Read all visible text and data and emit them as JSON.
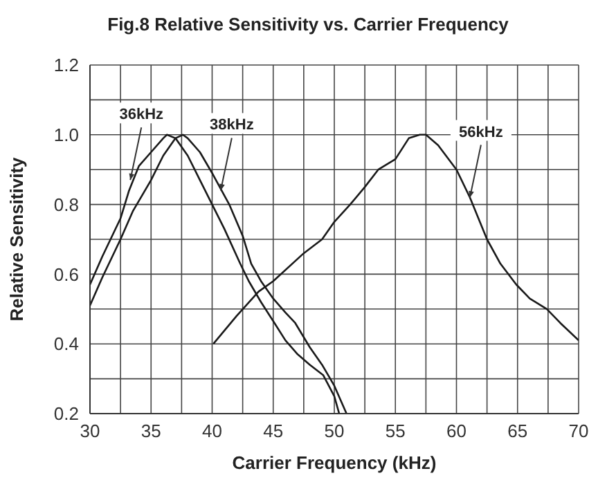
{
  "chart_data": {
    "type": "line",
    "title": "Fig.8 Relative Sensitivity vs. Carrier Frequency",
    "xlabel": "Carrier Frequency (kHz)",
    "ylabel": "Relative Sensitivity",
    "xlim": [
      30,
      70
    ],
    "xticks": [
      30,
      {
        "value": 32.5,
        "label": null
      },
      35,
      {
        "value": 37.5,
        "label": null
      },
      40,
      {
        "value": 42.5,
        "label": null
      },
      45,
      {
        "value": 47.5,
        "label": null
      },
      50,
      {
        "value": 52.5,
        "label": null
      },
      55,
      {
        "value": 57.5,
        "label": null
      },
      60,
      {
        "value": 62.5,
        "label": null
      },
      65,
      {
        "value": 67.5,
        "label": null
      },
      70
    ],
    "ylim": [
      0.2,
      1.2
    ],
    "yticks": [
      0.2,
      {
        "value": 0.3,
        "label": null
      },
      0.4,
      {
        "value": 0.5,
        "label": null
      },
      0.6,
      {
        "value": 0.7,
        "label": null
      },
      0.8,
      {
        "value": 0.9,
        "label": null
      },
      {
        "value": 1,
        "label": "1.0"
      },
      {
        "value": 1.1,
        "label": null
      },
      1.2
    ],
    "grid": true,
    "legend": false,
    "marker": "none",
    "line_style": "solid",
    "series": [
      {
        "color": "#1a1a1a",
        "x": [
          30,
          31,
          32.5,
          33.2,
          34,
          35,
          36,
          36.3,
          37,
          38,
          39,
          40,
          41,
          42.3,
          43,
          44,
          45.1,
          46,
          47,
          48,
          49.1,
          50,
          50.4
        ],
        "values": [
          0.57,
          0.65,
          0.76,
          0.84,
          0.91,
          0.95,
          0.99,
          1.0,
          0.99,
          0.94,
          0.87,
          0.8,
          0.73,
          0.63,
          0.58,
          0.52,
          0.46,
          0.41,
          0.37,
          0.34,
          0.31,
          0.25,
          0.2
        ]
      },
      {
        "color": "#1a1a1a",
        "x": [
          30,
          31,
          32.5,
          33.5,
          35,
          36,
          37,
          37.6,
          38,
          39,
          40,
          41.4,
          42.5,
          43.2,
          44,
          45,
          46,
          46.8,
          48,
          49,
          50,
          51
        ],
        "values": [
          0.51,
          0.59,
          0.7,
          0.78,
          0.87,
          0.94,
          0.99,
          1.0,
          0.99,
          0.95,
          0.89,
          0.8,
          0.71,
          0.63,
          0.58,
          0.53,
          0.49,
          0.46,
          0.39,
          0.34,
          0.28,
          0.2
        ]
      },
      {
        "color": "#1a1a1a",
        "x": [
          40.1,
          42,
          43.8,
          45,
          47.5,
          49,
          50,
          51.3,
          52.5,
          53.6,
          55,
          56.1,
          57,
          57.5,
          58.5,
          60,
          61.1,
          62.5,
          63.6,
          64.9,
          66,
          67.4,
          68.5,
          70
        ],
        "values": [
          0.4,
          0.48,
          0.55,
          0.58,
          0.66,
          0.7,
          0.75,
          0.8,
          0.85,
          0.9,
          0.93,
          0.99,
          1.0,
          1.0,
          0.97,
          0.9,
          0.82,
          0.7,
          0.63,
          0.57,
          0.53,
          0.5,
          0.46,
          0.41
        ]
      }
    ],
    "annotations": [
      {
        "text": "36kHz",
        "x": 33.3,
        "y": 0.87
      },
      {
        "text": "38kHz",
        "x": 40.7,
        "y": 0.84
      },
      {
        "text": "56kHz",
        "x": 61.1,
        "y": 0.82
      }
    ]
  }
}
